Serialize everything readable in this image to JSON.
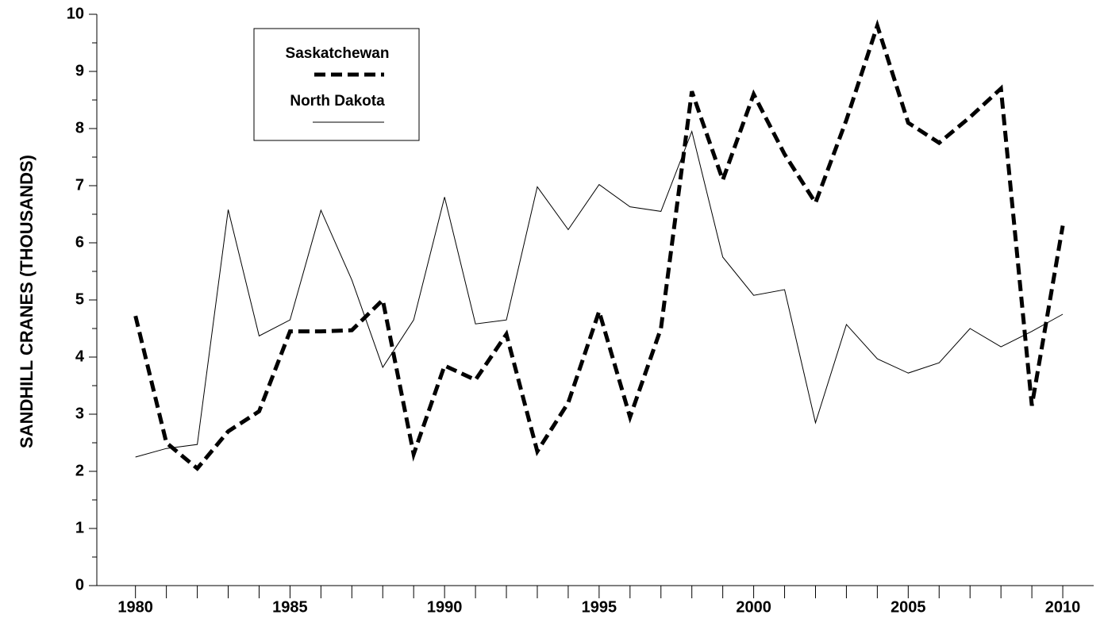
{
  "chart_data": {
    "type": "line",
    "y_label": "SANDHILL CRANES (THOUSANDS)",
    "x": [
      1980,
      1981,
      1982,
      1983,
      1984,
      1985,
      1986,
      1987,
      1988,
      1989,
      1990,
      1991,
      1992,
      1993,
      1994,
      1995,
      1996,
      1997,
      1998,
      1999,
      2000,
      2001,
      2002,
      2003,
      2004,
      2005,
      2006,
      2007,
      2008,
      2009,
      2010
    ],
    "series": [
      {
        "name": "Saskatchewan",
        "color": "#000000",
        "dashed": true,
        "values": [
          4.72,
          2.5,
          2.05,
          2.7,
          3.05,
          4.45,
          4.45,
          4.47,
          5.0,
          2.3,
          3.85,
          3.6,
          4.4,
          2.35,
          3.2,
          4.8,
          2.95,
          4.5,
          8.65,
          7.1,
          8.6,
          7.55,
          6.7,
          8.15,
          9.8,
          8.1,
          7.75,
          8.2,
          8.7,
          3.15,
          6.3
        ]
      },
      {
        "name": "North Dakota",
        "color": "#000000",
        "dashed": false,
        "values": [
          2.25,
          2.4,
          2.47,
          6.58,
          4.37,
          4.65,
          6.57,
          5.35,
          3.82,
          4.65,
          6.8,
          4.58,
          4.65,
          6.98,
          6.23,
          7.02,
          6.63,
          6.55,
          7.95,
          5.75,
          5.08,
          5.18,
          2.85,
          4.57,
          3.97,
          3.72,
          3.9,
          4.5,
          4.18,
          4.45,
          4.75
        ]
      }
    ],
    "xlim": [
      1978.75,
      2011
    ],
    "ylim": [
      0,
      10
    ],
    "xticks": [
      1980,
      1985,
      1990,
      1995,
      2000,
      2005,
      2010
    ],
    "yticks": [
      0,
      1,
      2,
      3,
      4,
      5,
      6,
      7,
      8,
      9,
      10
    ],
    "xminorticks": [
      1981,
      1982,
      1983,
      1984,
      1986,
      1987,
      1988,
      1989,
      1991,
      1992,
      1993,
      1994,
      1996,
      1997,
      1998,
      1999,
      2001,
      2002,
      2003,
      2004,
      2006,
      2007,
      2008,
      2009
    ],
    "yminorticks": [
      0.5,
      1.5,
      2.5,
      3.5,
      4.5,
      5.5,
      6.5,
      7.5,
      8.5,
      9.5
    ],
    "legend": "top-left",
    "grid": false
  }
}
